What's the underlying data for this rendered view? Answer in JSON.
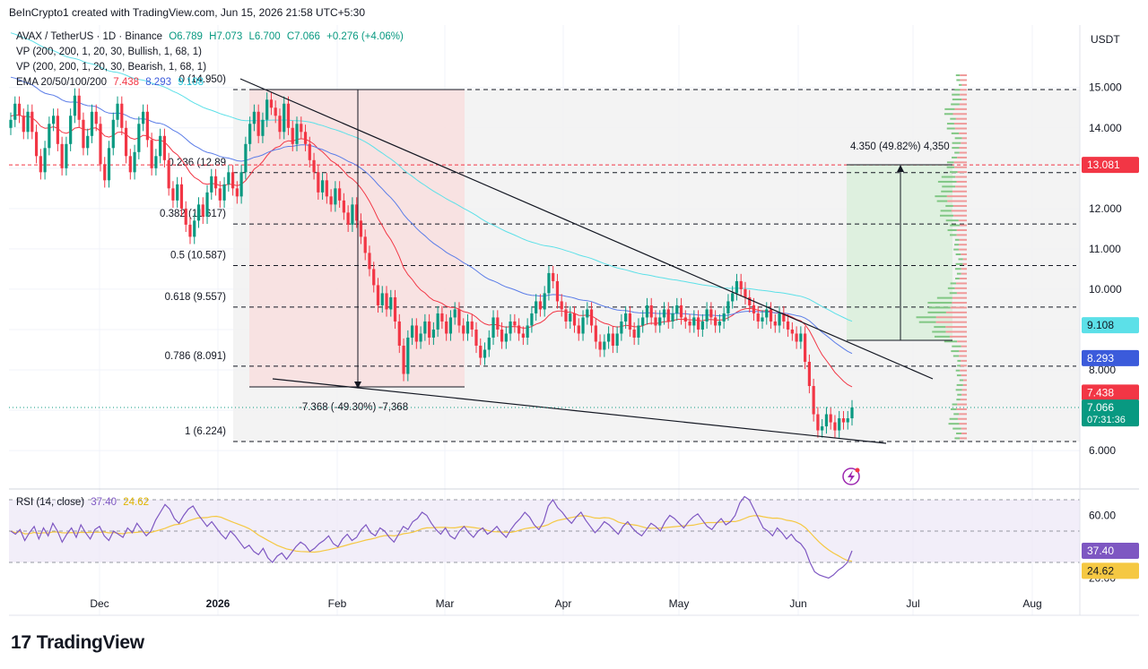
{
  "header": {
    "creator": "BeInCrypto1 created with TradingView.com, Jun 15, 2026 21:58 UTC+5:30"
  },
  "legend": {
    "symbol": "AVAX / TetherUS · 1D · Binance",
    "open": "O6.789",
    "high": "H7.073",
    "low": "L6.700",
    "close": "C7.066",
    "change": "+0.276 (+4.06%)",
    "vp_bull": "VP (200, 200, 1, 20, 30, Bullish, 1, 68, 1)",
    "vp_bear": "VP (200, 200, 1, 20, 30, Bearish, 1, 68, 1)",
    "ema_label": "EMA 20/50/100/200",
    "ema20": "7.438",
    "ema50": "8.293",
    "ema100": "9.108",
    "rsi_label": "RSI (14, close)",
    "rsi_val": "37.40",
    "rsi_ma": "24.62"
  },
  "currency": "USDT",
  "brand": "TradingView",
  "colors": {
    "up": "#089981",
    "down": "#f23645",
    "ema20": "#f23645",
    "ema50": "#5b7de8",
    "ema100": "#5ce0e8",
    "rsi": "#7e57c2",
    "rsi_ma": "#f5c842",
    "axis_text": "#131722"
  },
  "chart_data": {
    "type": "candlestick",
    "x_ticks": [
      "Dec",
      "2026",
      "Feb",
      "Mar",
      "Apr",
      "May",
      "Jun",
      "Jul",
      "Aug"
    ],
    "y_ticks": [
      "15.000",
      "14.000",
      "13.000",
      "12.000",
      "11.000",
      "10.000",
      "9.000",
      "8.000",
      "7.000",
      "6.000"
    ],
    "ylim": [
      5.7,
      15.8
    ],
    "price_labels": [
      {
        "value": 13.081,
        "text": "13.081",
        "color": "#f23645"
      },
      {
        "value": 9.108,
        "text": "9.108",
        "color": "#5ce0e8"
      },
      {
        "value": 8.293,
        "text": "8.293",
        "color": "#3b5bdb"
      },
      {
        "value": 7.438,
        "text": "7.438",
        "color": "#f23645"
      },
      {
        "value": 7.066,
        "text": "7.066",
        "sub": "07:31:36",
        "color": "#089981"
      }
    ],
    "fib_levels": [
      {
        "ratio": "0",
        "value": 14.95,
        "label": "0 (14.950)"
      },
      {
        "ratio": "0.236",
        "value": 12.89,
        "label": "0.236 (12.89"
      },
      {
        "ratio": "0.382",
        "value": 11.617,
        "label": "0.382 (11.617)"
      },
      {
        "ratio": "0.5",
        "value": 10.587,
        "label": "0.5 (10.587)"
      },
      {
        "ratio": "0.618",
        "value": 9.557,
        "label": "0.618 (9.557)"
      },
      {
        "ratio": "0.786",
        "value": 8.091,
        "label": "0.786 (8.091)"
      },
      {
        "ratio": "1",
        "value": 6.224,
        "label": "1 (6.224)"
      }
    ],
    "measure_down": "-7.368 (-49.30%) -7,368",
    "measure_up": "4.350 (49.82%) 4,350",
    "rsi_ticks": [
      "60.00",
      "20.00"
    ],
    "rsi_ylim": [
      14,
      82
    ],
    "close_series": [
      14.2,
      14.6,
      14.3,
      13.9,
      14.4,
      13.9,
      13.3,
      12.9,
      13.5,
      14.1,
      14.3,
      13.6,
      13.0,
      13.6,
      14.3,
      14.8,
      14.2,
      13.5,
      13.8,
      14.4,
      14.1,
      13.1,
      12.7,
      13.5,
      14.2,
      14.6,
      14.0,
      13.3,
      12.9,
      13.4,
      14.1,
      14.4,
      13.7,
      13.0,
      13.3,
      13.8,
      13.2,
      12.5,
      12.2,
      12.6,
      12.0,
      11.6,
      11.3,
      11.7,
      12.1,
      11.8,
      12.4,
      12.8,
      12.5,
      12.2,
      12.6,
      12.9,
      12.5,
      12.3,
      12.9,
      13.6,
      14.1,
      14.4,
      13.8,
      14.2,
      14.7,
      14.5,
      14.3,
      13.9,
      14.6,
      14.0,
      13.6,
      14.1,
      13.9,
      13.6,
      13.2,
      12.9,
      12.4,
      12.7,
      12.3,
      12.1,
      12.5,
      12.2,
      11.9,
      11.6,
      12.1,
      11.7,
      11.3,
      10.9,
      10.5,
      10.1,
      9.6,
      9.9,
      9.5,
      9.8,
      9.2,
      8.6,
      7.9,
      8.8,
      9.1,
      8.7,
      8.9,
      9.2,
      8.8,
      9.0,
      9.4,
      9.2,
      8.9,
      9.3,
      9.5,
      9.1,
      8.9,
      9.2,
      9.0,
      8.6,
      8.3,
      8.5,
      8.8,
      9.3,
      9.0,
      8.7,
      8.9,
      9.2,
      9.1,
      8.9,
      8.8,
      9.1,
      9.4,
      9.7,
      9.5,
      9.9,
      10.4,
      10.2,
      9.7,
      9.5,
      9.2,
      9.4,
      9.1,
      8.9,
      9.3,
      9.5,
      9.1,
      8.7,
      8.5,
      8.7,
      8.9,
      8.6,
      8.9,
      9.2,
      9.4,
      9.0,
      8.8,
      9.1,
      9.3,
      9.6,
      9.3,
      9.1,
      9.3,
      9.5,
      9.2,
      9.4,
      9.6,
      9.3,
      9.2,
      9.1,
      9.3,
      9.0,
      9.2,
      9.5,
      9.3,
      9.1,
      9.2,
      9.4,
      9.7,
      9.9,
      10.2,
      10.0,
      9.8,
      9.6,
      9.4,
      9.2,
      9.3,
      9.5,
      9.2,
      9.1,
      9.4,
      9.2,
      9.0,
      8.9,
      8.7,
      8.9,
      8.2,
      7.6,
      6.9,
      6.5,
      6.6,
      6.9,
      6.7,
      6.5,
      6.8,
      6.7,
      6.8,
      7.07
    ],
    "rsi_series": [
      50,
      48,
      51,
      44,
      49,
      53,
      45,
      52,
      47,
      55,
      50,
      43,
      48,
      52,
      46,
      54,
      49,
      45,
      51,
      53,
      47,
      44,
      50,
      48,
      46,
      52,
      49,
      55,
      51,
      47,
      50,
      57,
      62,
      67,
      64,
      58,
      55,
      60,
      64,
      66,
      61,
      57,
      53,
      56,
      52,
      48,
      45,
      50,
      47,
      43,
      39,
      41,
      37,
      35,
      39,
      33,
      30,
      34,
      36,
      32,
      36,
      40,
      43,
      41,
      37,
      39,
      42,
      44,
      47,
      42,
      40,
      45,
      48,
      44,
      46,
      51,
      54,
      49,
      47,
      52,
      50,
      46,
      43,
      48,
      53,
      51,
      56,
      58,
      62,
      60,
      55,
      51,
      48,
      52,
      47,
      45,
      50,
      53,
      49,
      46,
      50,
      52,
      48,
      50,
      53,
      49,
      46,
      51,
      55,
      58,
      62,
      59,
      54,
      51,
      56,
      66,
      70,
      65,
      62,
      58,
      55,
      59,
      62,
      57,
      53,
      49,
      52,
      56,
      54,
      51,
      48,
      53,
      56,
      52,
      49,
      47,
      51,
      55,
      53,
      50,
      56,
      60,
      58,
      55,
      52,
      56,
      59,
      61,
      57,
      53,
      51,
      55,
      58,
      54,
      56,
      60,
      68,
      72,
      70,
      64,
      58,
      52,
      50,
      47,
      52,
      49,
      45,
      48,
      44,
      42,
      38,
      30,
      24,
      22,
      21,
      20,
      22,
      25,
      27,
      30,
      37.4
    ]
  }
}
